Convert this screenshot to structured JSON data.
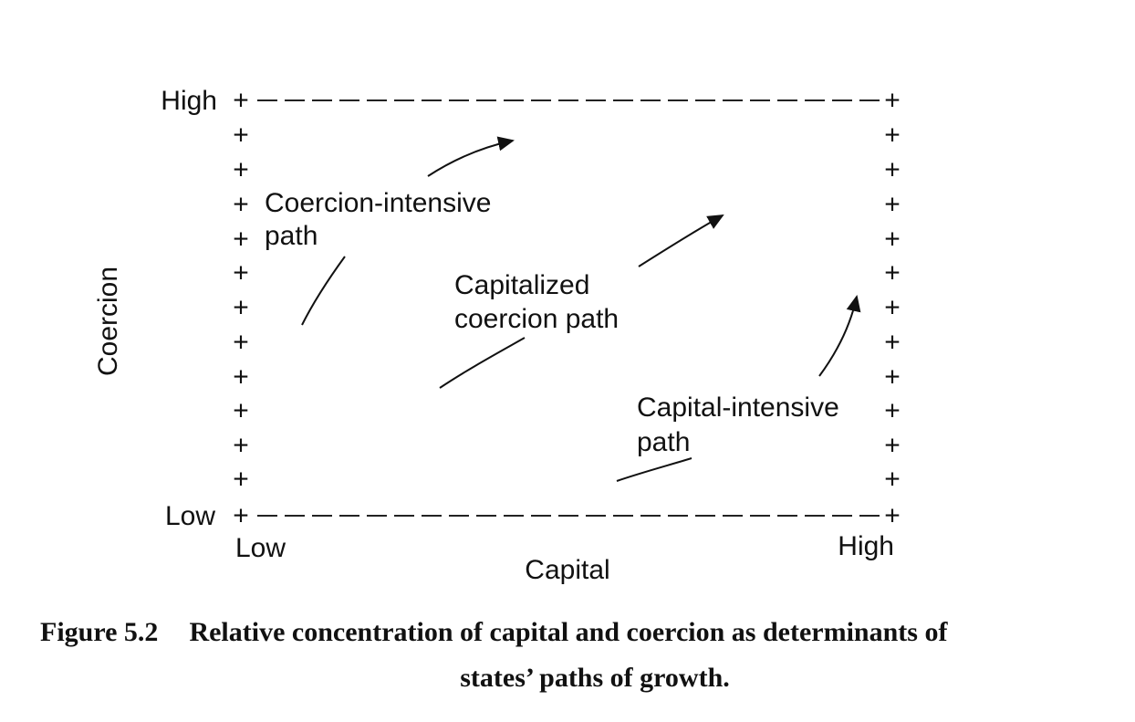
{
  "axes": {
    "y_title": "Coercion",
    "x_title": "Capital",
    "y_high": "High",
    "y_low": "Low",
    "x_low": "Low",
    "x_high": "High"
  },
  "paths": {
    "coercion_intensive": [
      "Coercion-intensive",
      "path"
    ],
    "capitalized_coercion": [
      "Capitalized",
      "coercion path"
    ],
    "capital_intensive": [
      "Capital-intensive",
      "path"
    ]
  },
  "caption": {
    "figure_number": "Figure 5.2",
    "line1": "Relative concentration of capital and coercion as determinants of",
    "line2": "states’ paths of  growth."
  },
  "plus_mark": "+"
}
